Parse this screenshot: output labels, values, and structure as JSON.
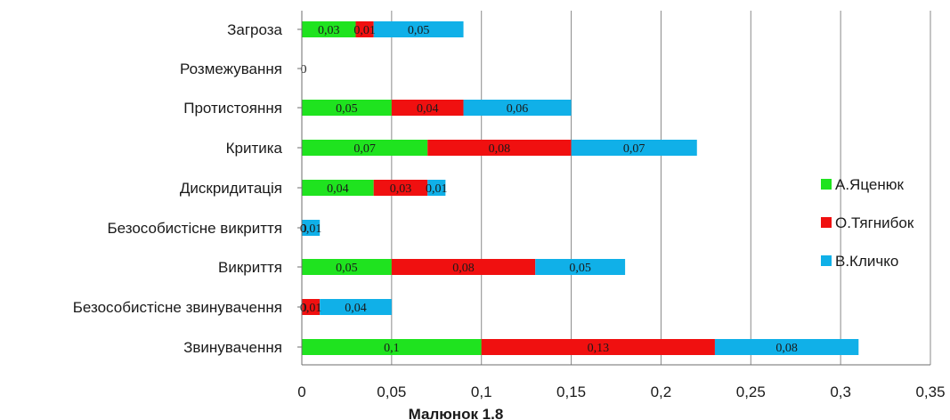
{
  "chart_data": {
    "type": "bar",
    "orientation": "horizontal",
    "stacked": true,
    "caption": "Малюнок 1.8",
    "categories": [
      "Загроза",
      "Розмежування",
      "Протистояння",
      "Критика",
      "Дискридитація",
      "Безособистісне викриття",
      "Викриття",
      "Безособистісне звинувачення",
      "Звинувачення"
    ],
    "series": [
      {
        "name": "А.Яценюк",
        "color": "#1fe31f",
        "values": [
          0.03,
          0,
          0.05,
          0.07,
          0.04,
          0,
          0.05,
          0,
          0.1
        ],
        "labels": [
          "0,03",
          "0",
          "0,05",
          "0,07",
          "0,04",
          "0",
          "0,05",
          "0",
          "0,1"
        ]
      },
      {
        "name": "О.Тягнибок",
        "color": "#f01010",
        "values": [
          0.01,
          0,
          0.04,
          0.08,
          0.03,
          0,
          0.08,
          0.01,
          0.13
        ],
        "labels": [
          "0,01",
          "",
          "0,04",
          "0,08",
          "0,03",
          "0",
          "0,08",
          "0,01",
          "0,13"
        ]
      },
      {
        "name": "В.Кличко",
        "color": "#10b0e8",
        "values": [
          0.05,
          0,
          0.06,
          0.07,
          0.01,
          0.01,
          0.05,
          0.04,
          0.08
        ],
        "labels": [
          "0,05",
          "",
          "0,06",
          "0,07",
          "0,01",
          "0,01",
          "0,05",
          "0,04",
          "0,08"
        ]
      }
    ],
    "xlim": [
      0,
      0.35
    ],
    "x_ticks": [
      0,
      0.05,
      0.1,
      0.15,
      0.2,
      0.25,
      0.3,
      0.35
    ],
    "x_tick_labels": [
      "0",
      "0,05",
      "0,1",
      "0,15",
      "0,2",
      "0,25",
      "0,3",
      "0,35"
    ],
    "grid": "vertical",
    "legend_position": "right"
  }
}
